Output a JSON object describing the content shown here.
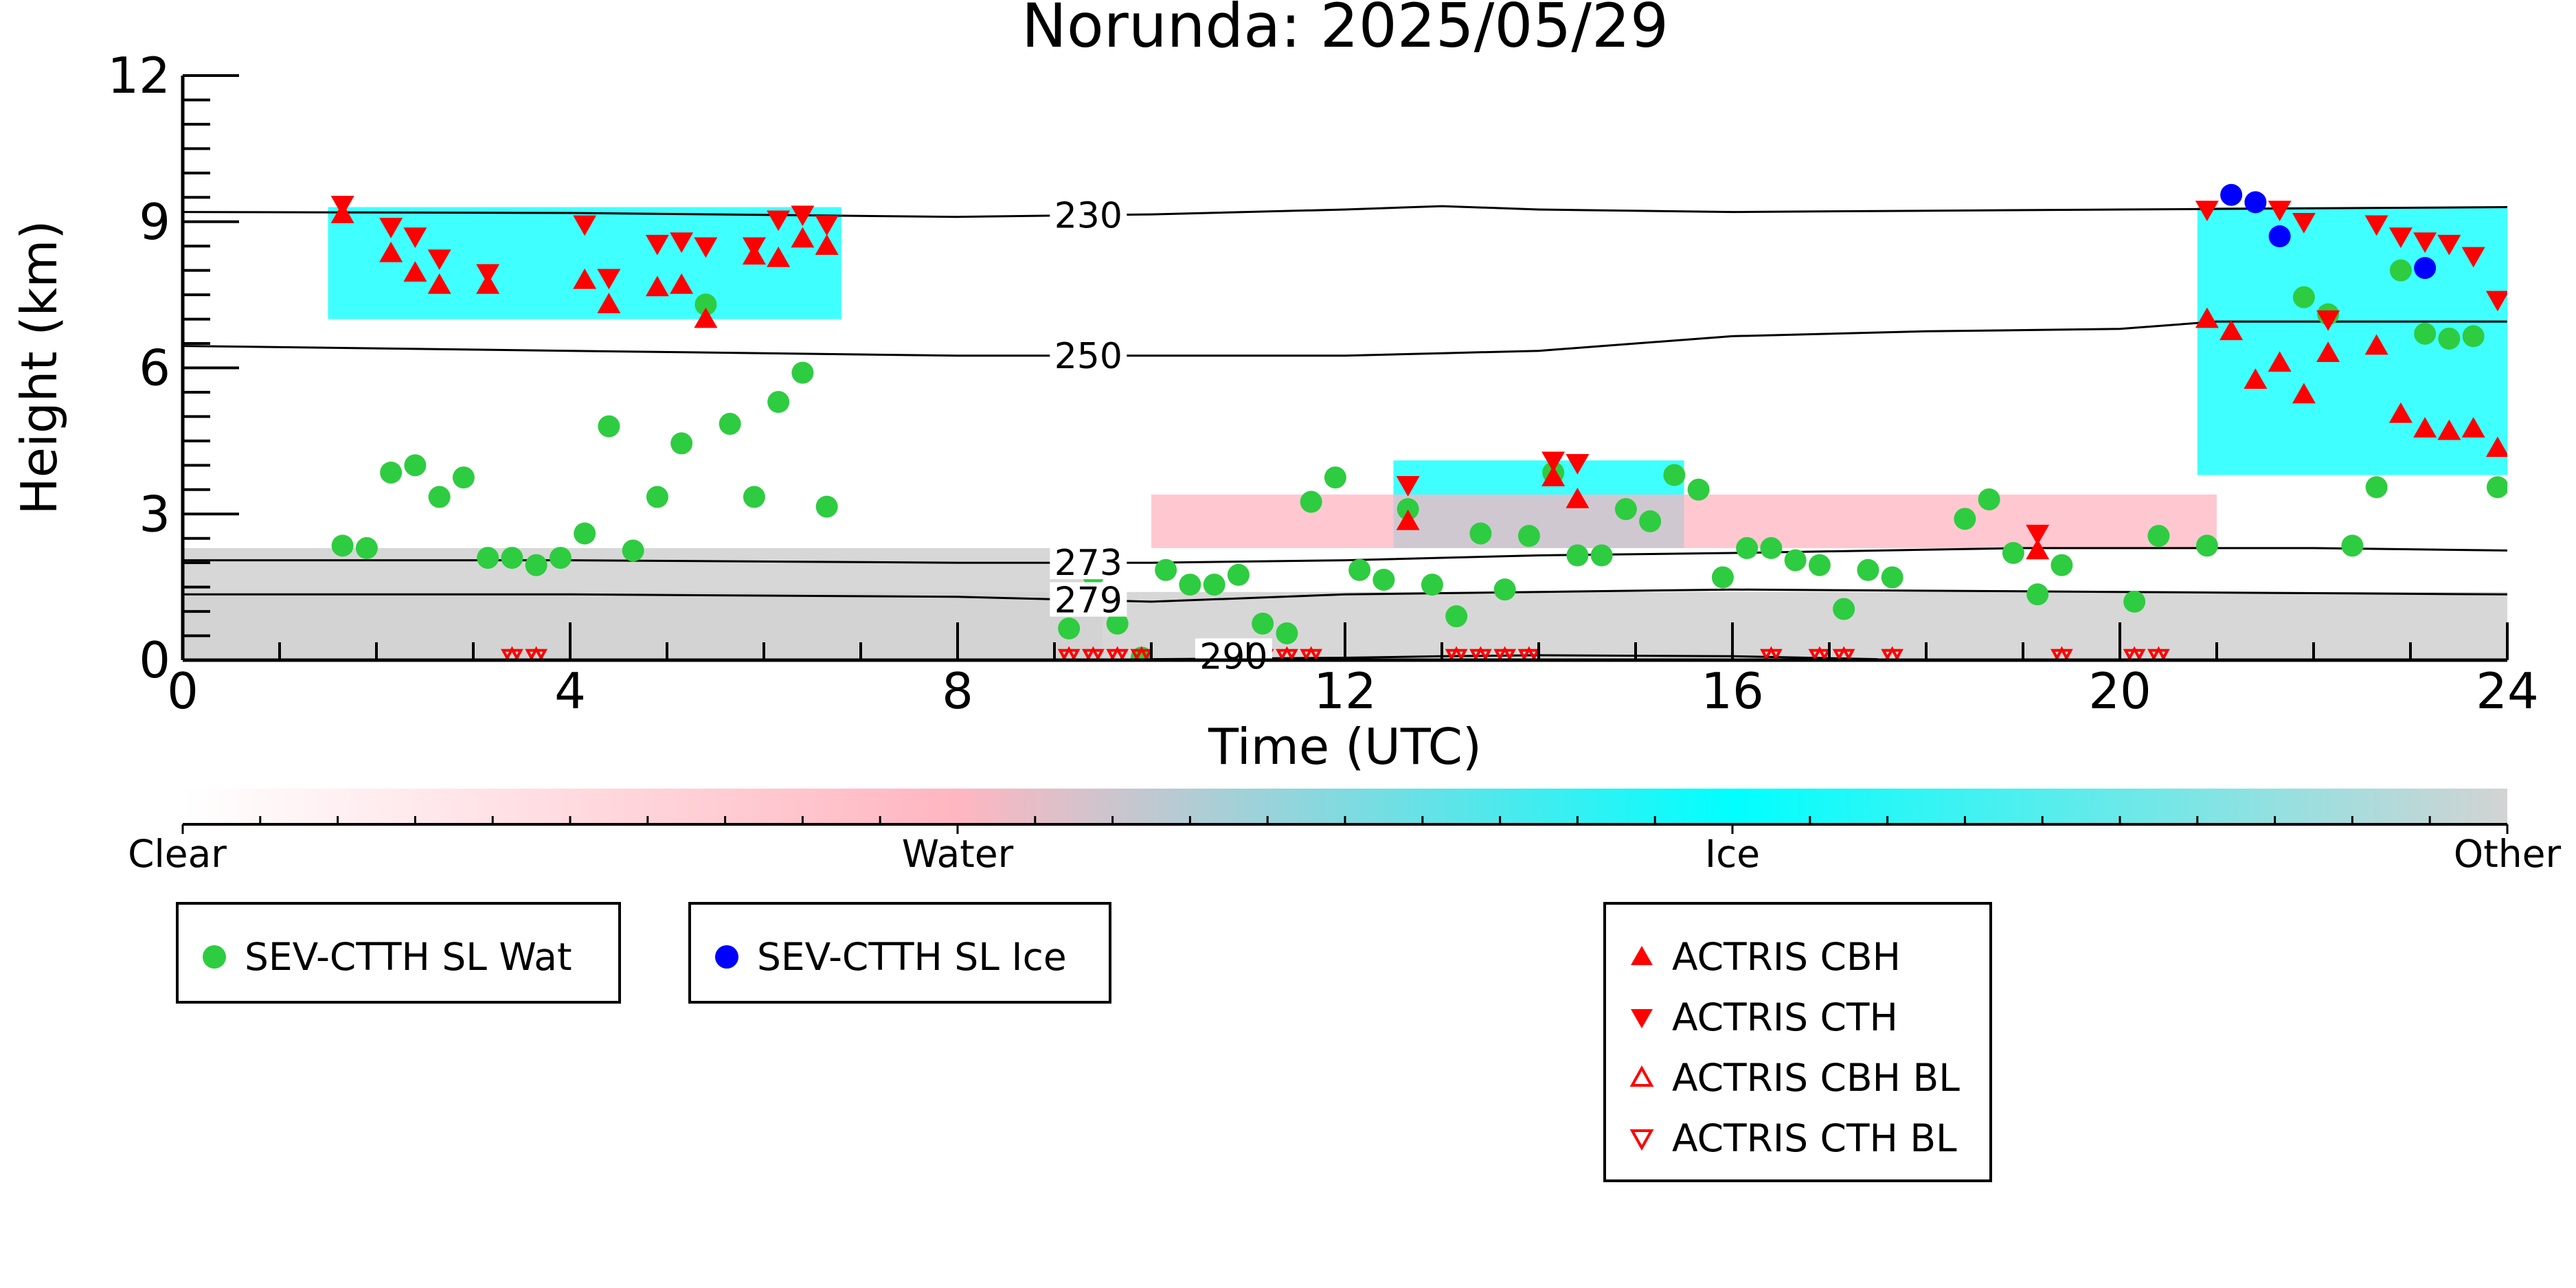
{
  "chart_data": {
    "type": "scatter",
    "title": "Norunda: 2025/05/29",
    "xlabel": "Time (UTC)",
    "ylabel": "Height (km)",
    "xlim": [
      0,
      24
    ],
    "ylim": [
      0,
      12
    ],
    "x_ticks": [
      0,
      4,
      8,
      12,
      16,
      20,
      24
    ],
    "y_ticks": [
      0,
      3,
      6,
      9,
      12
    ],
    "grid": false,
    "isotherms": [
      {
        "label": "230",
        "points": [
          [
            0,
            9.2
          ],
          [
            4,
            9.18
          ],
          [
            8,
            9.1
          ],
          [
            10,
            9.15
          ],
          [
            12,
            9.25
          ],
          [
            13,
            9.32
          ],
          [
            14,
            9.25
          ],
          [
            16,
            9.2
          ],
          [
            20,
            9.25
          ],
          [
            24,
            9.3
          ]
        ]
      },
      {
        "label": "250",
        "points": [
          [
            0,
            6.45
          ],
          [
            4,
            6.35
          ],
          [
            8,
            6.25
          ],
          [
            10,
            6.25
          ],
          [
            12,
            6.25
          ],
          [
            13,
            6.3
          ],
          [
            14,
            6.35
          ],
          [
            16,
            6.65
          ],
          [
            18,
            6.75
          ],
          [
            20,
            6.8
          ],
          [
            21,
            6.95
          ],
          [
            22,
            6.95
          ],
          [
            24,
            6.95
          ]
        ]
      },
      {
        "label": "273",
        "points": [
          [
            0,
            2.05
          ],
          [
            4,
            2.05
          ],
          [
            8,
            2.0
          ],
          [
            10,
            2.0
          ],
          [
            12,
            2.05
          ],
          [
            14,
            2.15
          ],
          [
            16,
            2.2
          ],
          [
            19,
            2.3
          ],
          [
            22,
            2.3
          ],
          [
            24,
            2.25
          ]
        ]
      },
      {
        "label": "279",
        "points": [
          [
            0,
            1.35
          ],
          [
            4,
            1.35
          ],
          [
            8,
            1.3
          ],
          [
            10,
            1.2
          ],
          [
            12,
            1.35
          ],
          [
            14,
            1.4
          ],
          [
            16,
            1.45
          ],
          [
            20,
            1.4
          ],
          [
            24,
            1.35
          ]
        ]
      },
      {
        "label": "290",
        "points": [
          [
            10,
            0.02
          ],
          [
            12,
            0.05
          ],
          [
            13,
            0.08
          ],
          [
            14,
            0.1
          ],
          [
            16,
            0.08
          ],
          [
            17.5,
            0.02
          ]
        ]
      }
    ],
    "cloud_classification": {
      "colorbar_labels": [
        "Clear",
        "Water",
        "Ice",
        "Other"
      ],
      "colors": {
        "Clear": "#ffffff",
        "Water": "#ffb6c1",
        "Ice": "#00ffff",
        "Other": "#d3d3d3"
      },
      "regions": [
        {
          "class": "Other",
          "x": [
            0,
            24
          ],
          "y": [
            0,
            1.4
          ]
        },
        {
          "class": "Other",
          "x": [
            0,
            9.5
          ],
          "y": [
            0,
            2.3
          ]
        },
        {
          "class": "Ice",
          "x": [
            1.5,
            6.8
          ],
          "y": [
            7.0,
            9.3
          ]
        },
        {
          "class": "Ice",
          "x": [
            20.8,
            24
          ],
          "y": [
            3.8,
            9.3
          ]
        },
        {
          "class": "Ice",
          "x": [
            12.5,
            15.5
          ],
          "y": [
            2.3,
            4.1
          ]
        },
        {
          "class": "Water",
          "x": [
            10,
            21
          ],
          "y": [
            2.3,
            3.4
          ]
        }
      ]
    },
    "series": [
      {
        "name": "SEV-CTTH SL Wat",
        "color": "#2ecc40",
        "marker": "circle",
        "x": [
          1.65,
          1.9,
          2.15,
          2.4,
          2.65,
          2.9,
          3.15,
          3.4,
          3.65,
          3.9,
          4.15,
          4.4,
          4.65,
          4.9,
          5.15,
          5.4,
          5.65,
          5.9,
          6.15,
          6.4,
          6.65,
          9.15,
          9.4,
          9.65,
          9.9,
          10.15,
          10.4,
          10.65,
          10.9,
          11.15,
          11.4,
          11.65,
          11.9,
          12.15,
          12.4,
          12.65,
          12.9,
          13.15,
          13.4,
          13.65,
          13.9,
          14.15,
          14.4,
          14.65,
          14.9,
          15.15,
          15.4,
          15.65,
          15.9,
          16.15,
          16.4,
          16.65,
          16.9,
          17.15,
          17.4,
          17.65,
          18.4,
          18.65,
          18.9,
          19.15,
          19.4,
          20.15,
          20.4,
          20.9,
          21.9,
          22.15,
          22.4,
          22.65,
          22.9,
          23.15,
          23.4,
          23.65,
          23.9
        ],
        "y": [
          2.35,
          2.3,
          3.85,
          4.0,
          3.35,
          3.75,
          2.1,
          2.1,
          1.95,
          2.1,
          2.6,
          4.8,
          2.25,
          3.35,
          4.45,
          7.3,
          4.85,
          3.35,
          5.3,
          5.9,
          3.15,
          0.65,
          1.75,
          0.75,
          0.05,
          1.85,
          1.55,
          1.55,
          1.75,
          0.75,
          0.55,
          3.25,
          3.75,
          1.85,
          1.65,
          3.1,
          1.55,
          0.9,
          2.6,
          1.45,
          2.55,
          3.85,
          2.15,
          2.15,
          3.1,
          2.85,
          3.8,
          3.5,
          1.7,
          2.3,
          2.3,
          2.05,
          1.95,
          1.05,
          1.85,
          1.7,
          2.9,
          3.3,
          2.2,
          1.35,
          1.95,
          1.2,
          2.55,
          2.35,
          7.45,
          7.1,
          2.35,
          3.55,
          8.0,
          6.7,
          6.6,
          6.65,
          3.55
        ]
      },
      {
        "name": "SEV-CTTH SL Ice",
        "color": "#0000ff",
        "marker": "circle",
        "x": [
          21.15,
          21.4,
          21.65,
          23.15
        ],
        "y": [
          9.55,
          9.4,
          8.7,
          8.05
        ]
      },
      {
        "name": "ACTRIS CBH",
        "color": "#ff0000",
        "marker": "triangle-up-filled",
        "x": [
          1.65,
          2.15,
          2.4,
          2.65,
          3.15,
          4.15,
          4.4,
          4.9,
          5.15,
          5.4,
          5.9,
          6.15,
          6.4,
          6.65,
          12.65,
          14.15,
          14.4,
          20.9,
          21.15,
          21.4,
          21.65,
          21.9,
          22.15,
          22.65,
          22.9,
          23.15,
          23.4,
          23.65,
          23.9,
          19.15
        ],
        "y": [
          9.15,
          8.35,
          7.95,
          7.7,
          7.7,
          7.8,
          7.3,
          7.65,
          7.7,
          7.0,
          8.3,
          8.25,
          8.65,
          8.5,
          2.85,
          3.75,
          3.3,
          7.0,
          6.75,
          5.75,
          6.1,
          5.45,
          6.3,
          6.45,
          5.05,
          4.75,
          4.7,
          4.75,
          4.35,
          2.25
        ]
      },
      {
        "name": "ACTRIS CTH",
        "color": "#ff0000",
        "marker": "triangle-down-filled",
        "x": [
          1.65,
          2.15,
          2.4,
          2.65,
          3.15,
          4.15,
          4.4,
          4.9,
          5.15,
          5.4,
          5.9,
          6.15,
          6.4,
          6.65,
          12.65,
          14.15,
          14.4,
          20.9,
          21.65,
          21.9,
          22.15,
          22.65,
          22.9,
          23.15,
          23.4,
          23.65,
          23.9,
          19.15
        ],
        "y": [
          9.35,
          8.9,
          8.7,
          8.25,
          7.95,
          8.95,
          7.85,
          8.55,
          8.6,
          8.5,
          8.5,
          9.05,
          9.15,
          8.95,
          3.6,
          4.1,
          4.05,
          9.25,
          9.25,
          9.0,
          7.0,
          8.95,
          8.7,
          8.6,
          8.55,
          8.3,
          7.4,
          2.6
        ]
      },
      {
        "name": "ACTRIS CBH BL",
        "color": "#ff0000",
        "marker": "triangle-up-open",
        "x": [
          3.4,
          3.65,
          9.15,
          9.4,
          9.65,
          9.9,
          10.65,
          10.9,
          11.15,
          11.4,
          11.65,
          13.15,
          13.4,
          13.65,
          13.9,
          16.4,
          16.9,
          17.15,
          17.65,
          19.4,
          20.15,
          20.4
        ],
        "y": [
          0.03,
          0.03,
          0.03,
          0.03,
          0.03,
          0.03,
          0.03,
          0.03,
          0.03,
          0.03,
          0.03,
          0.03,
          0.03,
          0.03,
          0.03,
          0.03,
          0.03,
          0.03,
          0.03,
          0.03,
          0.03,
          0.03
        ]
      },
      {
        "name": "ACTRIS CTH BL",
        "color": "#ff0000",
        "marker": "triangle-down-open",
        "x": [
          3.4,
          3.65,
          9.15,
          9.4,
          9.65,
          9.9,
          10.65,
          10.9,
          11.15,
          11.4,
          11.65,
          13.15,
          13.4,
          13.65,
          13.9,
          16.4,
          16.9,
          17.15,
          17.65,
          19.4,
          20.15,
          20.4
        ],
        "y": [
          0.06,
          0.06,
          0.06,
          0.06,
          0.06,
          0.06,
          0.06,
          0.06,
          0.06,
          0.06,
          0.06,
          0.06,
          0.06,
          0.06,
          0.06,
          0.06,
          0.06,
          0.06,
          0.06,
          0.06,
          0.06,
          0.06
        ]
      }
    ],
    "legends": [
      {
        "entries": [
          "SEV-CTTH SL Wat"
        ]
      },
      {
        "entries": [
          "SEV-CTTH SL Ice"
        ]
      },
      {
        "entries": [
          "ACTRIS CBH",
          "ACTRIS CTH",
          "ACTRIS CBH BL",
          "ACTRIS CTH BL"
        ]
      }
    ]
  }
}
